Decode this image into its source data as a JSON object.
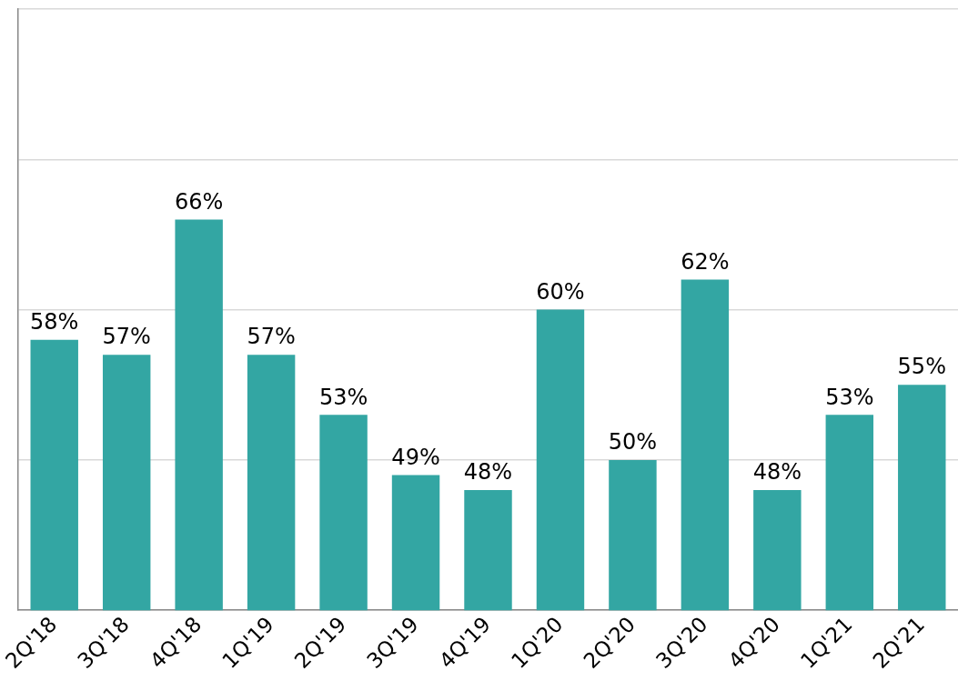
{
  "chart_data": {
    "type": "bar",
    "categories": [
      "2Q'18",
      "3Q'18",
      "4Q'18",
      "1Q'19",
      "2Q'19",
      "3Q'19",
      "4Q'19",
      "1Q'20",
      "2Q'20",
      "3Q'20",
      "4Q'20",
      "1Q'21",
      "2Q'21"
    ],
    "values": [
      58,
      57,
      66,
      57,
      53,
      49,
      48,
      60,
      50,
      62,
      48,
      53,
      55
    ],
    "value_labels": [
      "58%",
      "57%",
      "66%",
      "57%",
      "53%",
      "49%",
      "48%",
      "60%",
      "50%",
      "62%",
      "48%",
      "53%",
      "55%"
    ],
    "color": "#33a6a3",
    "ylim": [
      40,
      80
    ],
    "yticks": [
      {
        "value": 40,
        "label": null
      },
      {
        "value": 50,
        "label": null
      },
      {
        "value": 60,
        "label": null
      },
      {
        "value": 70,
        "label": null
      },
      {
        "value": 80,
        "label": null
      }
    ],
    "tick_labels": "x",
    "grid": "y"
  }
}
